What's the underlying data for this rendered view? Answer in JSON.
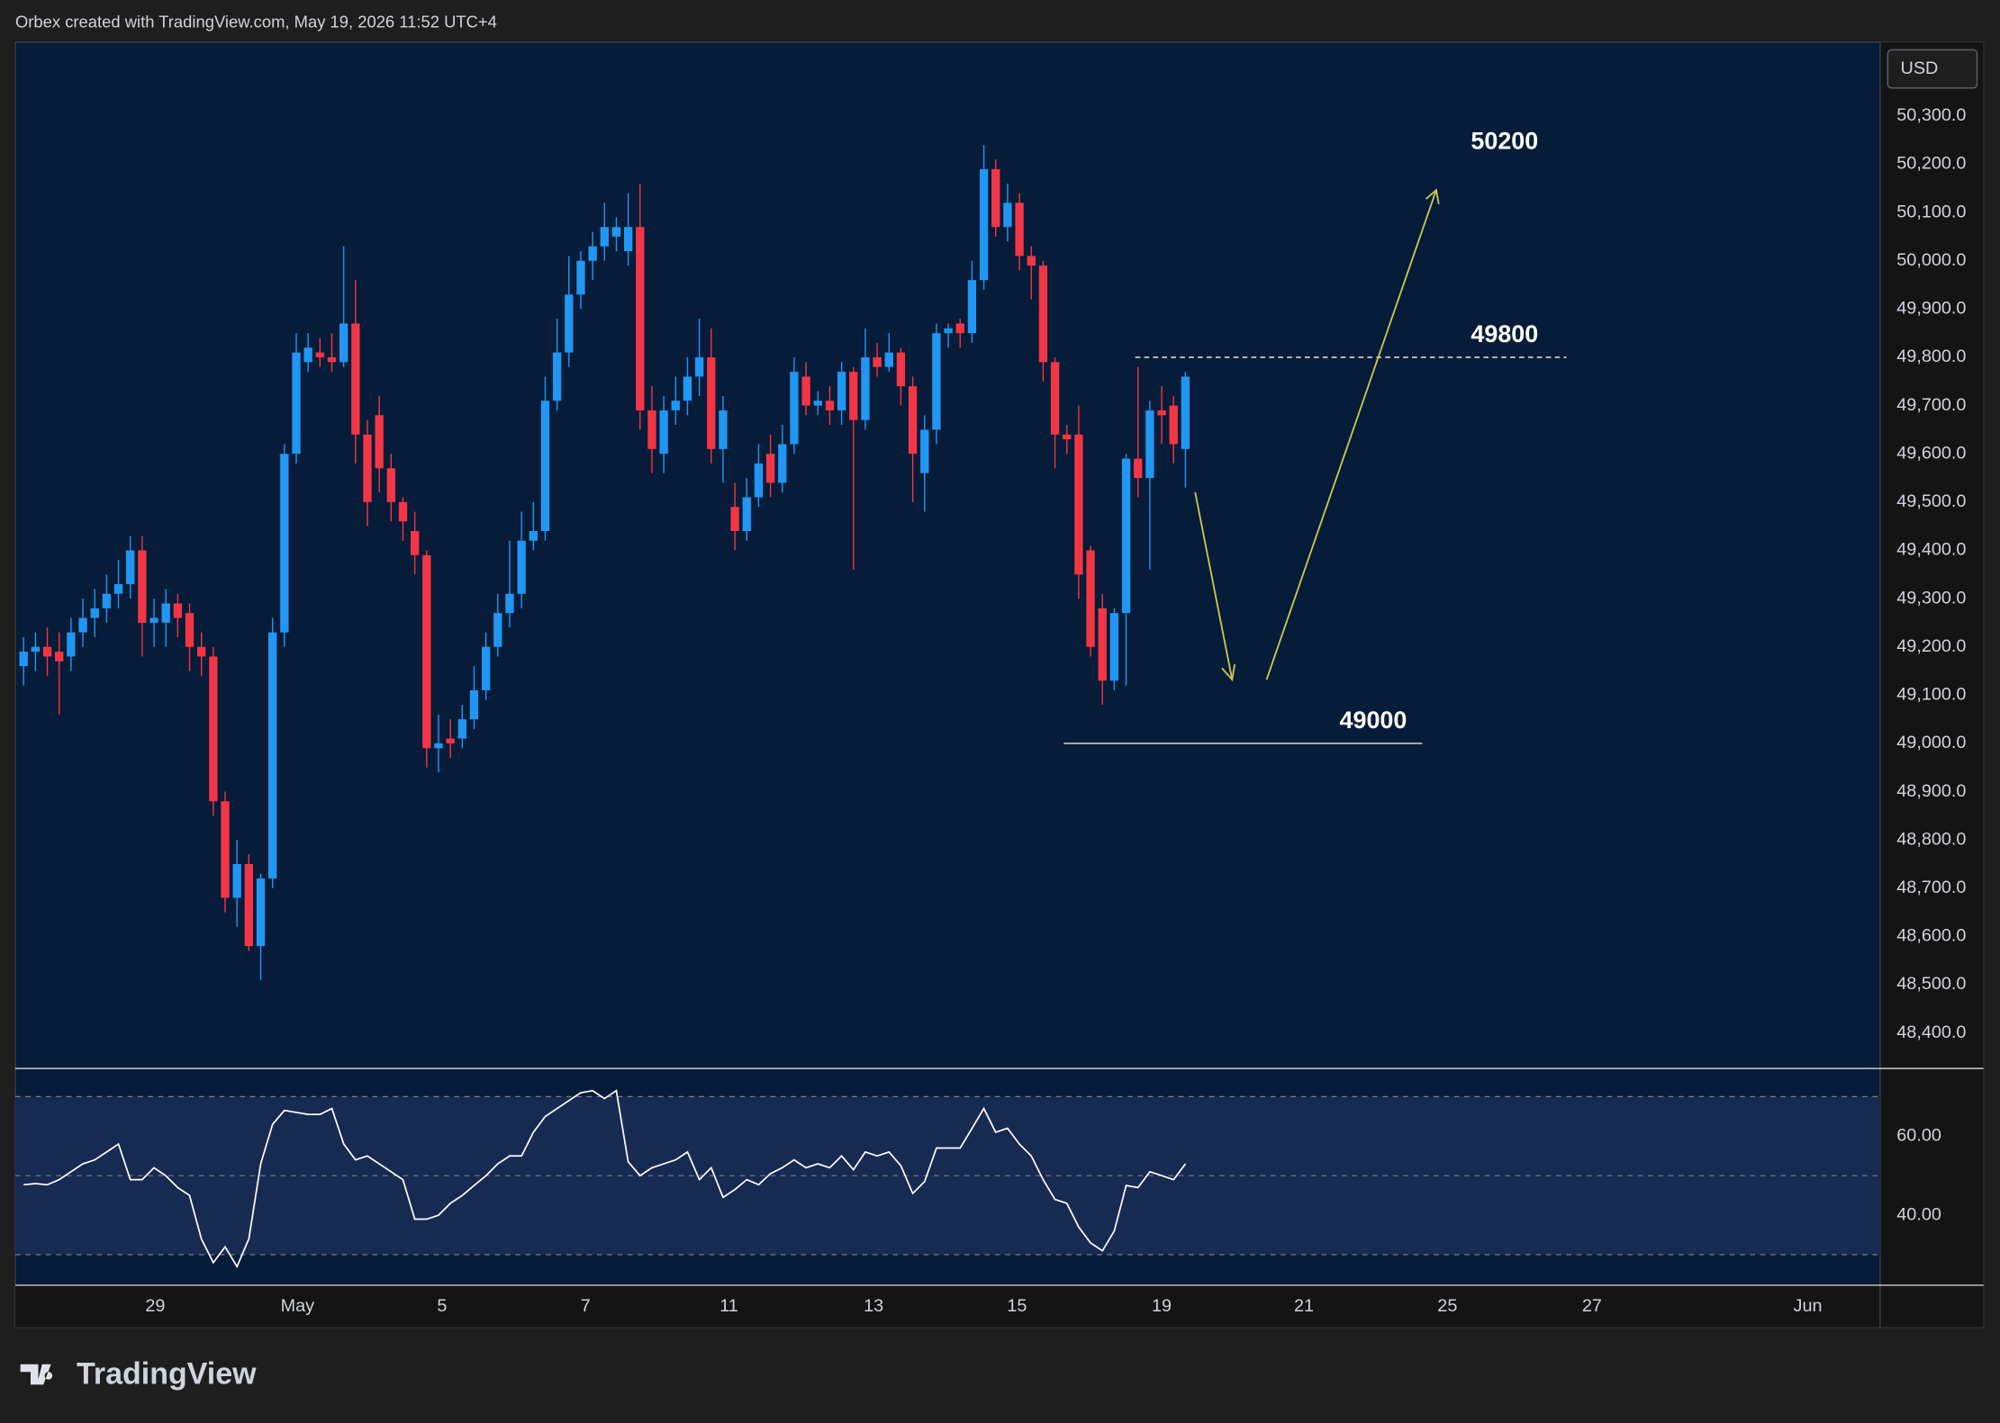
{
  "header": {
    "text": "Orbex created with TradingView.com, May 19, 2026 11:52 UTC+4"
  },
  "chart_data": {
    "type": "candlestick",
    "currency": "USD",
    "up_color": "#2196f3",
    "down_color": "#f23645",
    "open": [
      49160,
      49190,
      49200,
      49190,
      49180,
      49230,
      49260,
      49280,
      49310,
      49330,
      49400,
      49250,
      49250,
      49290,
      49270,
      49200,
      49180,
      48880,
      48680,
      48750,
      48580,
      48720,
      49230,
      49600,
      49790,
      49810,
      49800,
      49790,
      49870,
      49640,
      49680,
      49570,
      49500,
      49440,
      49390,
      48990,
      49010,
      49010,
      49050,
      49110,
      49200,
      49270,
      49310,
      49420,
      49440,
      49710,
      49810,
      49930,
      50000,
      50030,
      50050,
      50020,
      50070,
      49690,
      49600,
      49690,
      49710,
      49760,
      49800,
      49610,
      49490,
      49440,
      49510,
      49600,
      49540,
      49620,
      49760,
      49700,
      49710,
      49690,
      49770,
      49670,
      49800,
      49780,
      49810,
      49740,
      49560,
      49650,
      49850,
      49870,
      49850,
      49960,
      50190,
      50070,
      50120,
      50010,
      49990,
      49790,
      49640,
      49640,
      49400,
      49280,
      49130,
      49270,
      49590,
      49550,
      49690,
      49700,
      49610
    ],
    "high": [
      49220,
      49230,
      49240,
      49230,
      49260,
      49300,
      49320,
      49350,
      49380,
      49430,
      49430,
      49300,
      49320,
      49310,
      49290,
      49230,
      49200,
      48900,
      48800,
      48770,
      48730,
      49260,
      49620,
      49850,
      49850,
      49840,
      49850,
      50030,
      49960,
      49670,
      49720,
      49600,
      49510,
      49480,
      49400,
      49060,
      49050,
      49080,
      49160,
      49230,
      49310,
      49420,
      49480,
      49500,
      49760,
      49880,
      50010,
      50020,
      50060,
      50120,
      50090,
      50140,
      50160,
      49740,
      49720,
      49760,
      49800,
      49880,
      49860,
      49720,
      49540,
      49550,
      49620,
      49640,
      49660,
      49800,
      49790,
      49730,
      49740,
      49790,
      49780,
      49860,
      49830,
      49850,
      49820,
      49760,
      49680,
      49870,
      49870,
      49880,
      50000,
      50240,
      50210,
      50160,
      50140,
      50030,
      50000,
      49800,
      49660,
      49700,
      49410,
      49310,
      49280,
      49600,
      49780,
      49710,
      49740,
      49720,
      49770
    ],
    "low": [
      49120,
      49150,
      49140,
      49060,
      49150,
      49200,
      49220,
      49250,
      49280,
      49300,
      49180,
      49200,
      49200,
      49220,
      49150,
      49140,
      48850,
      48650,
      48620,
      48570,
      48510,
      48700,
      49200,
      49580,
      49770,
      49780,
      49770,
      49780,
      49580,
      49450,
      49520,
      49460,
      49420,
      49350,
      48950,
      48940,
      48970,
      48990,
      49030,
      49090,
      49180,
      49240,
      49280,
      49400,
      49420,
      49690,
      49780,
      49900,
      49960,
      50000,
      50020,
      49990,
      49650,
      49560,
      49560,
      49660,
      49680,
      49720,
      49580,
      49540,
      49400,
      49420,
      49490,
      49510,
      49520,
      49600,
      49680,
      49680,
      49660,
      49660,
      49360,
      49650,
      49760,
      49770,
      49700,
      49500,
      49480,
      49620,
      49820,
      49820,
      49830,
      49940,
      50050,
      50040,
      49980,
      49920,
      49750,
      49570,
      49600,
      49300,
      49180,
      49080,
      49110,
      49120,
      49510,
      49360,
      49620,
      49580,
      49530
    ],
    "close": [
      49190,
      49200,
      49180,
      49170,
      49230,
      49260,
      49280,
      49310,
      49330,
      49400,
      49250,
      49260,
      49290,
      49260,
      49200,
      49180,
      48880,
      48680,
      48750,
      48580,
      48720,
      49230,
      49600,
      49810,
      49820,
      49800,
      49790,
      49870,
      49640,
      49500,
      49570,
      49500,
      49460,
      49390,
      48990,
      49000,
      49000,
      49050,
      49110,
      49200,
      49270,
      49310,
      49420,
      49440,
      49710,
      49810,
      49930,
      50000,
      50030,
      50070,
      50070,
      50070,
      49690,
      49610,
      49690,
      49710,
      49760,
      49800,
      49610,
      49690,
      49440,
      49510,
      49580,
      49540,
      49620,
      49770,
      49700,
      49710,
      49690,
      49770,
      49670,
      49800,
      49780,
      49810,
      49740,
      49600,
      49650,
      49850,
      49860,
      49850,
      49960,
      50190,
      50070,
      50120,
      50010,
      49990,
      49790,
      49640,
      49630,
      49350,
      49200,
      49130,
      49270,
      49590,
      49550,
      49690,
      49680,
      49620,
      49760
    ],
    "ylim": [
      48329,
      50453
    ],
    "yticks": [
      {
        "value": 48400,
        "label": "48,400.0"
      },
      {
        "value": 48500,
        "label": "48,500.0"
      },
      {
        "value": 48600,
        "label": "48,600.0"
      },
      {
        "value": 48700,
        "label": "48,700.0"
      },
      {
        "value": 48800,
        "label": "48,800.0"
      },
      {
        "value": 48900,
        "label": "48,900.0"
      },
      {
        "value": 49000,
        "label": "49,000.0"
      },
      {
        "value": 49100,
        "label": "49,100.0"
      },
      {
        "value": 49200,
        "label": "49,200.0"
      },
      {
        "value": 49300,
        "label": "49,300.0"
      },
      {
        "value": 49400,
        "label": "49,400.0"
      },
      {
        "value": 49500,
        "label": "49,500.0"
      },
      {
        "value": 49600,
        "label": "49,600.0"
      },
      {
        "value": 49700,
        "label": "49,700.0"
      },
      {
        "value": 49800,
        "label": "49,800.0"
      },
      {
        "value": 49900,
        "label": "49,900.0"
      },
      {
        "value": 50000,
        "label": "50,000.0"
      },
      {
        "value": 50100,
        "label": "50,100.0"
      },
      {
        "value": 50200,
        "label": "50,200.0"
      },
      {
        "value": 50300,
        "label": "50,300.0"
      }
    ],
    "xlim": [
      -0.7,
      156.6
    ],
    "xticks": [
      {
        "value": 11.1,
        "label": "29"
      },
      {
        "value": 23.1,
        "label": "May"
      },
      {
        "value": 35.3,
        "label": "5"
      },
      {
        "value": 47.4,
        "label": "7"
      },
      {
        "value": 59.5,
        "label": "11"
      },
      {
        "value": 71.7,
        "label": "13"
      },
      {
        "value": 83.8,
        "label": "15"
      },
      {
        "value": 96,
        "label": "19"
      },
      {
        "value": 108,
        "label": "21"
      },
      {
        "value": 120.1,
        "label": "25"
      },
      {
        "value": 132.3,
        "label": "27"
      },
      {
        "value": 150.5,
        "label": "Jun"
      }
    ],
    "levels": [
      50200,
      49800,
      49000
    ],
    "rsi": {
      "color": "#ffffff",
      "band_color": "#172a52",
      "values": [
        47.7,
        48,
        47.7,
        49,
        51,
        53,
        54,
        56,
        58,
        49,
        49,
        52,
        50,
        47,
        45,
        34,
        28,
        32,
        27,
        34,
        53,
        63,
        66.5,
        66,
        65.5,
        65.5,
        67,
        58,
        54,
        55,
        53,
        51,
        49,
        39,
        39,
        40,
        43,
        45,
        47.5,
        50,
        53,
        55,
        55,
        61,
        65,
        67,
        69,
        71,
        71.5,
        69.5,
        71.5,
        53.5,
        50,
        52,
        53,
        54,
        56,
        49,
        52,
        44.5,
        46.5,
        49,
        47.7,
        50.5,
        52,
        54,
        52,
        53,
        52,
        55,
        51.5,
        56,
        55,
        56,
        52.5,
        45.5,
        48.5,
        57,
        57,
        57,
        62,
        67,
        61,
        62,
        58,
        55,
        49,
        44,
        43,
        37,
        33,
        31,
        36,
        47.5,
        47,
        51,
        50,
        49,
        53
      ],
      "ylim": [
        22.6,
        76.8
      ],
      "yticks": [
        {
          "value": 60,
          "label": "60.00"
        },
        {
          "value": 40,
          "label": "40.00"
        }
      ],
      "levels": [
        70,
        50,
        30
      ]
    }
  },
  "footer": {
    "logo": "TradingView"
  }
}
